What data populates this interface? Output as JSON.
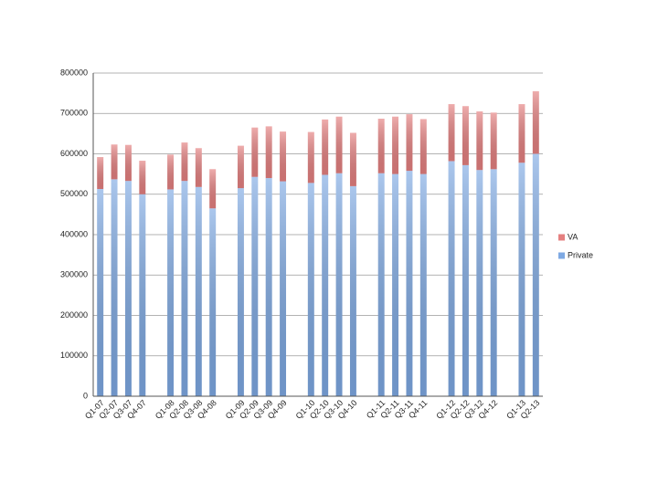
{
  "chart_data": {
    "type": "stacked-bar",
    "categories": [
      "Q1-07",
      "Q2-07",
      "Q3-07",
      "Q4-07",
      null,
      "Q1-08",
      "Q2-08",
      "Q3-08",
      "Q4-08",
      null,
      "Q1-09",
      "Q2-09",
      "Q3-09",
      "Q4-09",
      null,
      "Q1-10",
      "Q2-10",
      "Q3-10",
      "Q4-10",
      null,
      "Q1-11",
      "Q2-11",
      "Q3-11",
      "Q4-11",
      null,
      "Q1-12",
      "Q2-12",
      "Q3-12",
      "Q4-12",
      null,
      "Q1-13",
      "Q2-13"
    ],
    "series": [
      {
        "name": "Private",
        "color": "#7ea9e3",
        "values": [
          513000,
          537000,
          533000,
          500000,
          null,
          512000,
          533000,
          518000,
          465000,
          null,
          515000,
          543000,
          540000,
          532000,
          null,
          528000,
          548000,
          552000,
          520000,
          null,
          552000,
          550000,
          558000,
          550000,
          null,
          582000,
          572000,
          560000,
          562000,
          null,
          578000,
          600000
        ]
      },
      {
        "name": "VA",
        "color": "#e58080",
        "values": [
          79000,
          86000,
          89000,
          83000,
          null,
          86000,
          95000,
          96000,
          97000,
          null,
          105000,
          122000,
          128000,
          123000,
          null,
          126000,
          137000,
          140000,
          132000,
          null,
          135000,
          142000,
          140000,
          136000,
          null,
          141000,
          146000,
          145000,
          140000,
          null,
          145000,
          155000
        ]
      }
    ],
    "ylim": [
      0,
      800000
    ],
    "yticks": [
      0,
      100000,
      200000,
      300000,
      400000,
      500000,
      600000,
      700000,
      800000
    ],
    "grid": true,
    "legend": "right"
  }
}
